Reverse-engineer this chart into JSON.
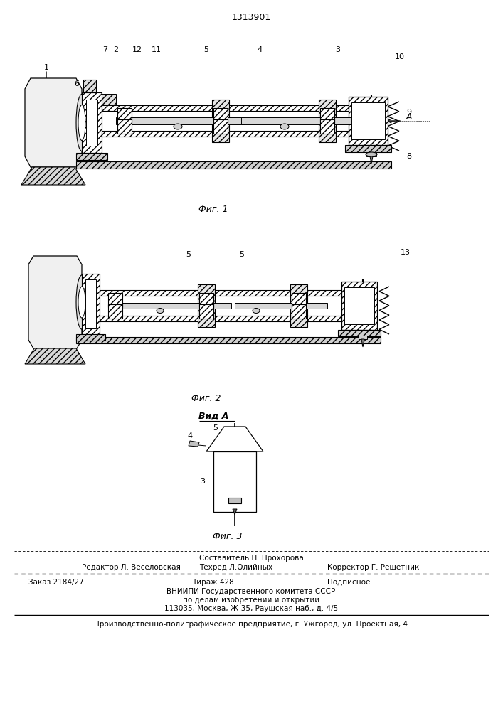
{
  "patent_number": "1313901",
  "background_color": "#ffffff",
  "fig_width": 7.07,
  "fig_height": 10.0,
  "fig1_caption": "Фиг. 1",
  "fig2_caption": "Фиг. 2",
  "fig3_caption": "Фиг. 3",
  "vid_a_label": "Вид А",
  "footer_line1": "Составитель Н. Прохорова",
  "footer_line2_left": "Редактор Л. Веселовская",
  "footer_line2_mid": "Техред Л.Олийных",
  "footer_line2_right": "Корректор Г. Решетник",
  "footer_line3_left": "Заказ 2184/27",
  "footer_line3_mid": "Тираж 428",
  "footer_line3_right": "Подписное",
  "footer_line4": "ВНИИПИ Государственного комитета СССР",
  "footer_line5": "по делам изобретений и открытий",
  "footer_line6": "113035, Москва, Ж-35, Раушская наб., д. 4/5",
  "footer_line7": "Производственно-полиграфическое предприятие, г. Ужгород, ул. Проектная, 4",
  "drawing_color": "#000000"
}
